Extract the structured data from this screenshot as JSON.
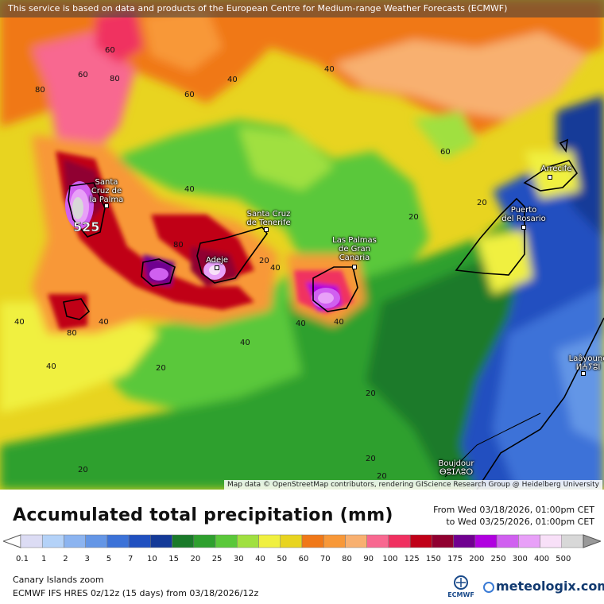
{
  "banner": "This service is based on data and products of the European Centre for Medium-range Weather Forecasts (ECMWF)",
  "attribution": "Map data © OpenStreetMap contributors, rendering GIScience Research Group @ Heidelberg University",
  "cities": [
    {
      "name": "Santa Cruz de la Palma",
      "label": "Santa\nCruz de\nla Palma"
    },
    {
      "name": "Santa Cruz de Tenerife",
      "label": "Santa Cruz\nde Tenerife"
    },
    {
      "name": "Adeje",
      "label": "Adeje"
    },
    {
      "name": "Las Palmas de Gran Canaria",
      "label": "Las Palmas\nde Gran\nCanaria"
    },
    {
      "name": "Puerto del Rosario",
      "label": "Puerto\ndel Rosario"
    },
    {
      "name": "Arrecife",
      "label": "Arrecife"
    },
    {
      "name": "Laâyoune",
      "label": "Laâyoune\nⵍⵄⵢⵓⵏ"
    },
    {
      "name": "Boujdour",
      "label": "Boujdour\nⴱⵓⵊⴷⵓⵔ"
    }
  ],
  "peak_value": "525",
  "contour_labels": [
    "60",
    "80",
    "40",
    "60",
    "40",
    "80",
    "60",
    "40",
    "80",
    "40",
    "40",
    "80",
    "20",
    "40",
    "20",
    "40",
    "20",
    "40",
    "40",
    "20",
    "20",
    "20",
    "20",
    "40",
    "20",
    "60"
  ],
  "legend": {
    "title": "Accumulated total precipitation (mm)",
    "period_from": "From Wed 03/18/2026, 01:00pm CET",
    "period_to": "to Wed 03/25/2026, 01:00pm CET",
    "thresholds": [
      "0.1",
      "1",
      "2",
      "3",
      "5",
      "7",
      "10",
      "15",
      "20",
      "25",
      "30",
      "40",
      "50",
      "60",
      "70",
      "80",
      "90",
      "100",
      "125",
      "150",
      "175",
      "200",
      "250",
      "300",
      "400",
      "500"
    ],
    "colors": [
      "#dcdcf4",
      "#b4d2f8",
      "#8cb4f0",
      "#6496e6",
      "#3c72d8",
      "#2050c0",
      "#143a98",
      "#1a7a2a",
      "#2ea02e",
      "#5ac83a",
      "#a0e040",
      "#f0f040",
      "#e8d420",
      "#f07818",
      "#f89838",
      "#f8b070",
      "#f86890",
      "#f03060",
      "#c00018",
      "#900030",
      "#700090",
      "#b000e0",
      "#d060f0",
      "#e8a0f8",
      "#f8e0f8",
      "#d8d8d8"
    ],
    "area": "Canary Islands zoom",
    "model": "ECMWF IFS HRES 0z/12z (15 days) from  03/18/2026/12z",
    "ecmwf_logo": "ECMWF",
    "brand": "meteologix.com"
  }
}
